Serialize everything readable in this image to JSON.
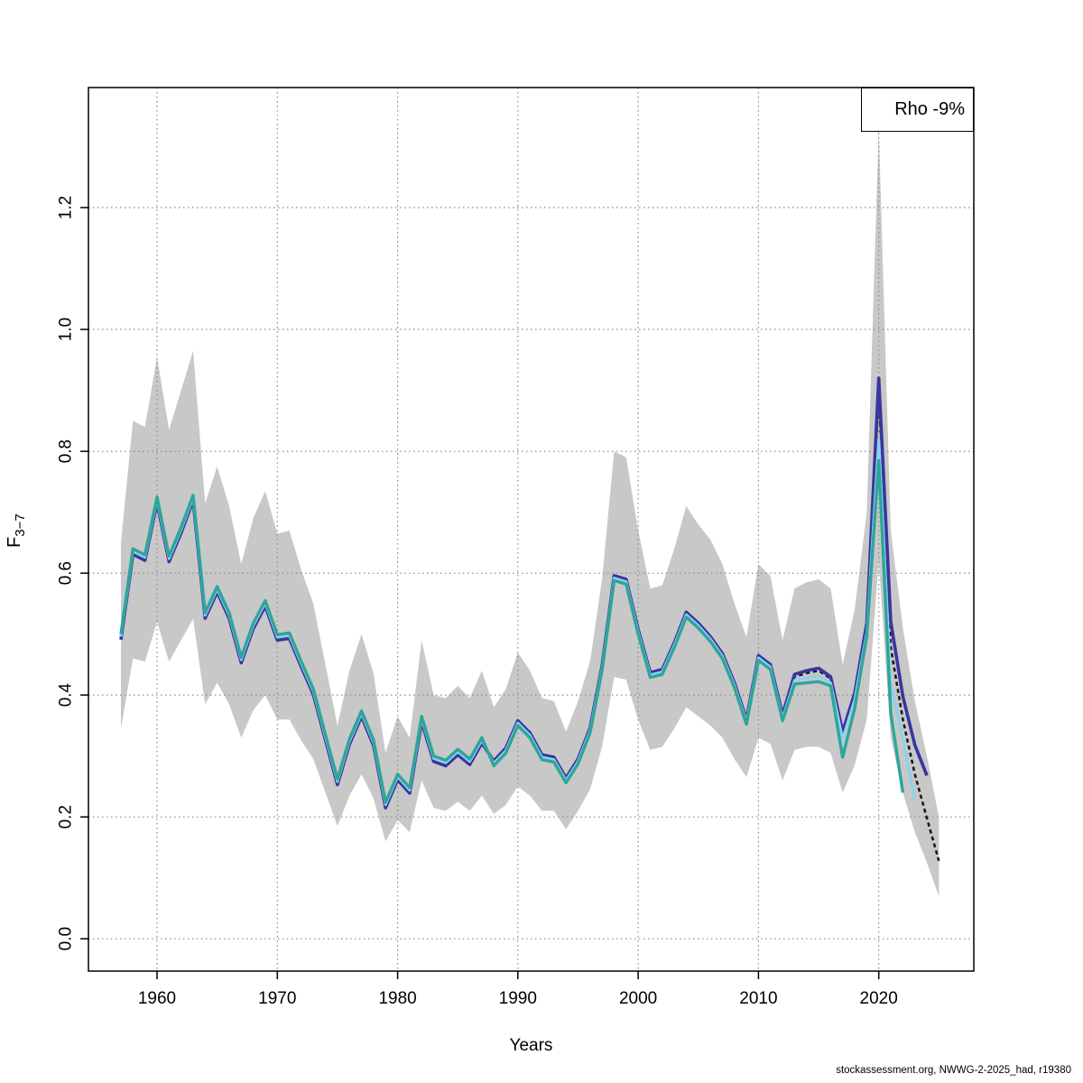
{
  "legend": {
    "label": "Rho -9%"
  },
  "footer": {
    "text": "stockassessment.org, NWWG-2-2025_had, r19380"
  },
  "axes": {
    "xlabel": "Years",
    "ylabel_main": "F",
    "ylabel_sub": "3−7"
  },
  "chart_data": {
    "type": "line",
    "title": "",
    "xlabel": "Years",
    "ylabel": "F_3-7",
    "grid": "dotted",
    "grid_color": "#8a8a8a",
    "legend_position": "top-right",
    "xlim": [
      1954.3,
      2027.9
    ],
    "ylim": [
      -0.053,
      1.397
    ],
    "x_ticks": [
      1960,
      1970,
      1980,
      1990,
      2000,
      2010,
      2020
    ],
    "y_ticks": [
      0,
      0.2,
      0.4,
      0.6,
      0.8,
      1.0,
      1.2
    ],
    "y_tick_labels": [
      "0.0",
      "0.2",
      "0.4",
      "0.6",
      "0.8",
      "1.0",
      "1.2"
    ],
    "start_year": 1957,
    "history_values": [
      0.5,
      0.64,
      0.63,
      0.725,
      0.628,
      0.675,
      0.728,
      0.535,
      0.578,
      0.535,
      0.462,
      0.518,
      0.555,
      0.499,
      0.502,
      0.455,
      0.41,
      0.335,
      0.262,
      0.328,
      0.374,
      0.326,
      0.224,
      0.27,
      0.248,
      0.365,
      0.3,
      0.293,
      0.311,
      0.295,
      0.33,
      0.284,
      0.305,
      0.35,
      0.33,
      0.294,
      0.29,
      0.256,
      0.287,
      0.338,
      0.44,
      0.588,
      0.582,
      0.5,
      0.429,
      0.434,
      0.478,
      0.528,
      0.51,
      0.488,
      0.46,
      0.412,
      0.352,
      0.457,
      0.442
    ],
    "band": {
      "color": "#c8c8c8",
      "start_year": 1957,
      "lower": [
        0.345,
        0.46,
        0.455,
        0.52,
        0.455,
        0.49,
        0.525,
        0.385,
        0.42,
        0.385,
        0.33,
        0.375,
        0.4,
        0.36,
        0.36,
        0.325,
        0.295,
        0.24,
        0.185,
        0.235,
        0.27,
        0.23,
        0.16,
        0.195,
        0.175,
        0.26,
        0.215,
        0.21,
        0.225,
        0.21,
        0.235,
        0.205,
        0.22,
        0.25,
        0.235,
        0.21,
        0.21,
        0.18,
        0.21,
        0.245,
        0.315,
        0.43,
        0.425,
        0.36,
        0.31,
        0.315,
        0.345,
        0.38,
        0.365,
        0.35,
        0.33,
        0.295,
        0.265,
        0.33,
        0.32,
        0.26,
        0.31,
        0.315,
        0.315,
        0.305,
        0.24,
        0.285,
        0.36,
        0.62,
        0.33,
        0.24,
        0.175,
        0.125,
        0.07
      ],
      "upper": [
        0.65,
        0.85,
        0.84,
        0.955,
        0.835,
        0.9,
        0.965,
        0.715,
        0.775,
        0.71,
        0.615,
        0.69,
        0.735,
        0.665,
        0.67,
        0.605,
        0.55,
        0.45,
        0.35,
        0.44,
        0.5,
        0.435,
        0.305,
        0.365,
        0.33,
        0.49,
        0.4,
        0.395,
        0.415,
        0.395,
        0.44,
        0.38,
        0.41,
        0.47,
        0.44,
        0.395,
        0.39,
        0.34,
        0.39,
        0.455,
        0.59,
        0.8,
        0.79,
        0.67,
        0.575,
        0.58,
        0.64,
        0.71,
        0.68,
        0.655,
        0.615,
        0.55,
        0.495,
        0.615,
        0.595,
        0.49,
        0.575,
        0.585,
        0.59,
        0.575,
        0.45,
        0.54,
        0.7,
        1.33,
        0.67,
        0.51,
        0.39,
        0.3,
        0.2
      ]
    },
    "series": [
      {
        "name": "base-run-dashed",
        "color": "#1a1a1a",
        "dashed": true,
        "width": 2.6,
        "offset_pre": -0.009,
        "offset_post": 0.006,
        "offset_split_year": 1988,
        "tail_start": 2012,
        "tail": [
          0.365,
          0.43,
          0.436,
          0.44,
          0.427,
          0.335,
          0.398,
          0.51,
          0.898,
          0.478,
          0.36,
          0.27,
          0.198,
          0.128
        ]
      },
      {
        "name": "run-ending-2024",
        "color": "#3a35a0",
        "dashed": false,
        "width": 3.6,
        "offset_pre": -0.009,
        "offset_post": 0.008,
        "offset_split_year": 1988,
        "tail_start": 2012,
        "tail": [
          0.368,
          0.434,
          0.44,
          0.444,
          0.43,
          0.34,
          0.403,
          0.518,
          0.92,
          0.52,
          0.398,
          0.318,
          0.268
        ]
      },
      {
        "name": "run-ending-2023",
        "color": "#8cd2ee",
        "dashed": false,
        "width": 3.0,
        "offset_pre": -0.004,
        "offset_post": 0.004,
        "offset_split_year": 1988,
        "tail_start": 2012,
        "tail": [
          0.362,
          0.424,
          0.428,
          0.432,
          0.42,
          0.328,
          0.392,
          0.503,
          0.82,
          0.42,
          0.328,
          0.228
        ]
      },
      {
        "name": "run-ending-2022",
        "color": "#2da699",
        "dashed": false,
        "width": 3.4,
        "offset_pre": 0,
        "offset_post": 0,
        "offset_split_year": 1988,
        "tail_start": 2012,
        "tail": [
          0.358,
          0.418,
          0.42,
          0.422,
          0.415,
          0.298,
          0.378,
          0.497,
          0.785,
          0.37,
          0.24
        ]
      }
    ]
  }
}
